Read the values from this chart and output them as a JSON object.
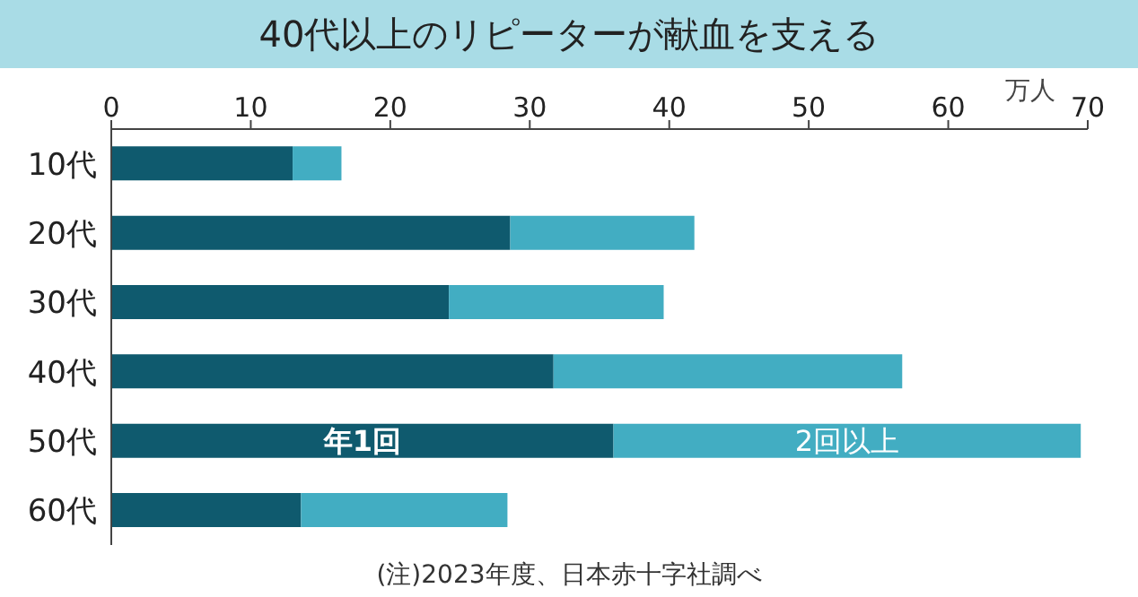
{
  "chart_data": {
    "type": "bar",
    "orientation": "horizontal",
    "stacked": true,
    "title": "40代以上のリピーターが献血を支える",
    "xlabel": "万人",
    "categories": [
      "10代",
      "20代",
      "30代",
      "40代",
      "50代",
      "60代"
    ],
    "series": [
      {
        "name": "年1回",
        "color": "#0f5a6e",
        "values": [
          13.0,
          28.6,
          24.2,
          31.7,
          36.0,
          13.6
        ]
      },
      {
        "name": "2回以上",
        "color": "#42adc2",
        "values": [
          3.5,
          13.2,
          15.4,
          25.0,
          33.5,
          14.8
        ]
      }
    ],
    "xlim": [
      0,
      70
    ],
    "xticks": [
      0,
      10,
      20,
      30,
      40,
      50,
      60,
      70
    ],
    "grid": false,
    "legend": false,
    "annotations": [
      "(注)2023年度、日本赤十字社調べ"
    ]
  }
}
